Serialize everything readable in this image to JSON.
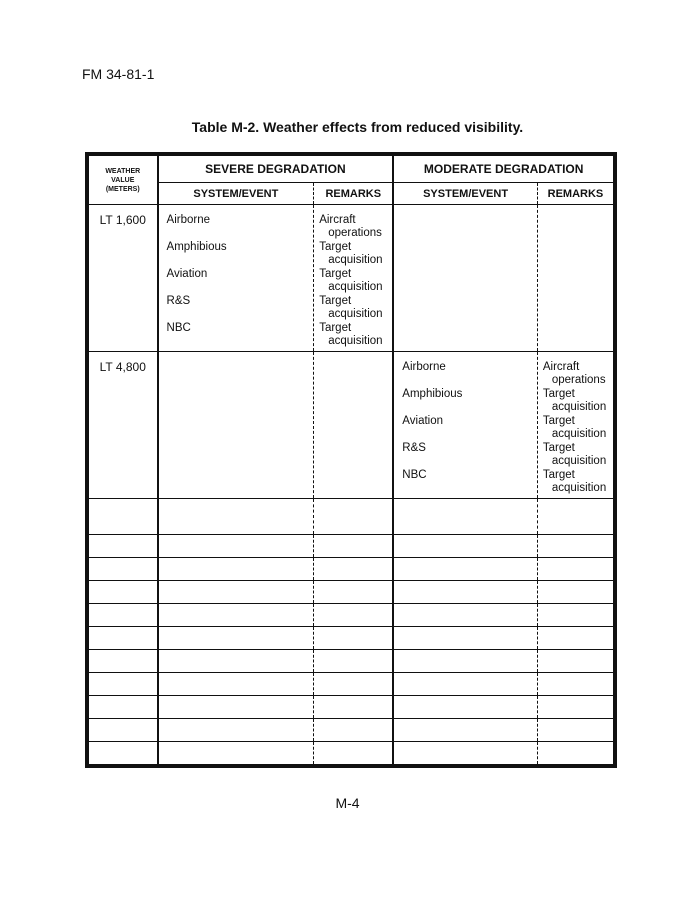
{
  "header": {
    "doc_id": "FM 34-81-1"
  },
  "title": "Table M-2.  Weather effects from reduced visibility.",
  "table": {
    "col_weather": [
      "WEATHER",
      "VALUE",
      "(METERS)"
    ],
    "group_severe": "SEVERE DEGRADATION",
    "group_moderate": "MODERATE DEGRADATION",
    "sub_system": "SYSTEM/EVENT",
    "sub_remarks": "REMARKS",
    "rows": [
      {
        "value": "LT 1,600",
        "severe": [
          {
            "system": "Airborne",
            "remark": [
              "Aircraft",
              "operations"
            ]
          },
          {
            "system": "Amphibious",
            "remark": [
              "Target",
              "acquisition"
            ]
          },
          {
            "system": "Aviation",
            "remark": [
              "Target",
              "acquisition"
            ]
          },
          {
            "system": "R&S",
            "remark": [
              "Target",
              "acquisition"
            ]
          },
          {
            "system": "NBC",
            "remark": [
              "Target",
              "acquisition"
            ]
          }
        ],
        "moderate": []
      },
      {
        "value": "LT 4,800",
        "severe": [],
        "moderate": [
          {
            "system": "Airborne",
            "remark": [
              "Aircraft",
              "operations"
            ]
          },
          {
            "system": "Amphibious",
            "remark": [
              "Target",
              "acquisition"
            ]
          },
          {
            "system": "Aviation",
            "remark": [
              "Target",
              "acquisition"
            ]
          },
          {
            "system": "R&S",
            "remark": [
              "Target",
              "acquisition"
            ]
          },
          {
            "system": "NBC",
            "remark": [
              "Target",
              "acquisition"
            ]
          }
        ]
      }
    ],
    "empty_rows": 11
  },
  "footer": {
    "page_number": "M-4"
  }
}
